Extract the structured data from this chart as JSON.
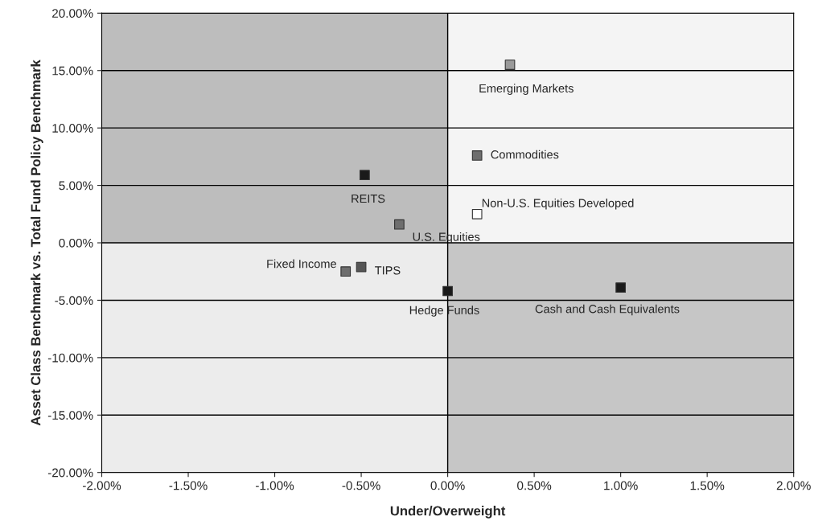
{
  "chart_data": {
    "type": "scatter",
    "xlabel": "Under/Overweight",
    "ylabel": "Asset Class Benchmark vs. Total Fund Policy Benchmark",
    "x": [
      0.36,
      0.17,
      -0.48,
      -0.28,
      0.17,
      -0.59,
      -0.5,
      0.0,
      1.0
    ],
    "values": [
      15.5,
      7.6,
      5.9,
      1.6,
      2.5,
      -2.5,
      -2.1,
      -4.2,
      -3.9
    ],
    "colors": [
      "#9a9a9a",
      "#6e6e6e",
      "#1a1a1a",
      "#6e6e6e",
      "#ffffff",
      "#6e6e6e",
      "#555555",
      "#1a1a1a",
      "#1a1a1a"
    ],
    "annotations": [
      {
        "text": "Emerging Markets",
        "x": 0.36,
        "y": 15.5
      },
      {
        "text": "Commodities",
        "x": 0.17,
        "y": 7.6
      },
      {
        "text": "REITS",
        "x": -0.48,
        "y": 5.9
      },
      {
        "text": "U.S. Equities",
        "x": -0.28,
        "y": 1.6
      },
      {
        "text": "Non-U.S. Equities Developed",
        "x": 0.17,
        "y": 2.5
      },
      {
        "text": "Fixed Income",
        "x": -0.59,
        "y": -2.5
      },
      {
        "text": "TIPS",
        "x": -0.5,
        "y": -2.1
      },
      {
        "text": "Hedge Funds",
        "x": 0.0,
        "y": -4.2
      },
      {
        "text": "Cash and Cash Equivalents",
        "x": 1.0,
        "y": -3.9
      }
    ],
    "xlim": [
      -2,
      2
    ],
    "ylim": [
      -20,
      20
    ],
    "xticks": [
      {
        "value": -2,
        "label": "-2.00%"
      },
      {
        "value": -1.5,
        "label": "-1.50%"
      },
      {
        "value": -1,
        "label": "-1.00%"
      },
      {
        "value": -0.5,
        "label": "-0.50%"
      },
      {
        "value": 0,
        "label": "0.00%"
      },
      {
        "value": 0.5,
        "label": "0.50%"
      },
      {
        "value": 1,
        "label": "1.00%"
      },
      {
        "value": 1.5,
        "label": "1.50%"
      },
      {
        "value": 2,
        "label": "2.00%"
      }
    ],
    "yticks": [
      {
        "value": 20,
        "label": "20.00%"
      },
      {
        "value": 15,
        "label": "15.00%"
      },
      {
        "value": 10,
        "label": "10.00%"
      },
      {
        "value": 5,
        "label": "5.00%"
      },
      {
        "value": 0,
        "label": "0.00%"
      },
      {
        "value": -5,
        "label": "-5.00%"
      },
      {
        "value": -10,
        "label": "-10.00%"
      },
      {
        "value": -15,
        "label": "-15.00%"
      },
      {
        "value": -20,
        "label": "-20.00%"
      }
    ],
    "ref_lines": [
      {
        "axis": "x",
        "value": 0
      }
    ],
    "grid": "y",
    "marker": "square"
  }
}
